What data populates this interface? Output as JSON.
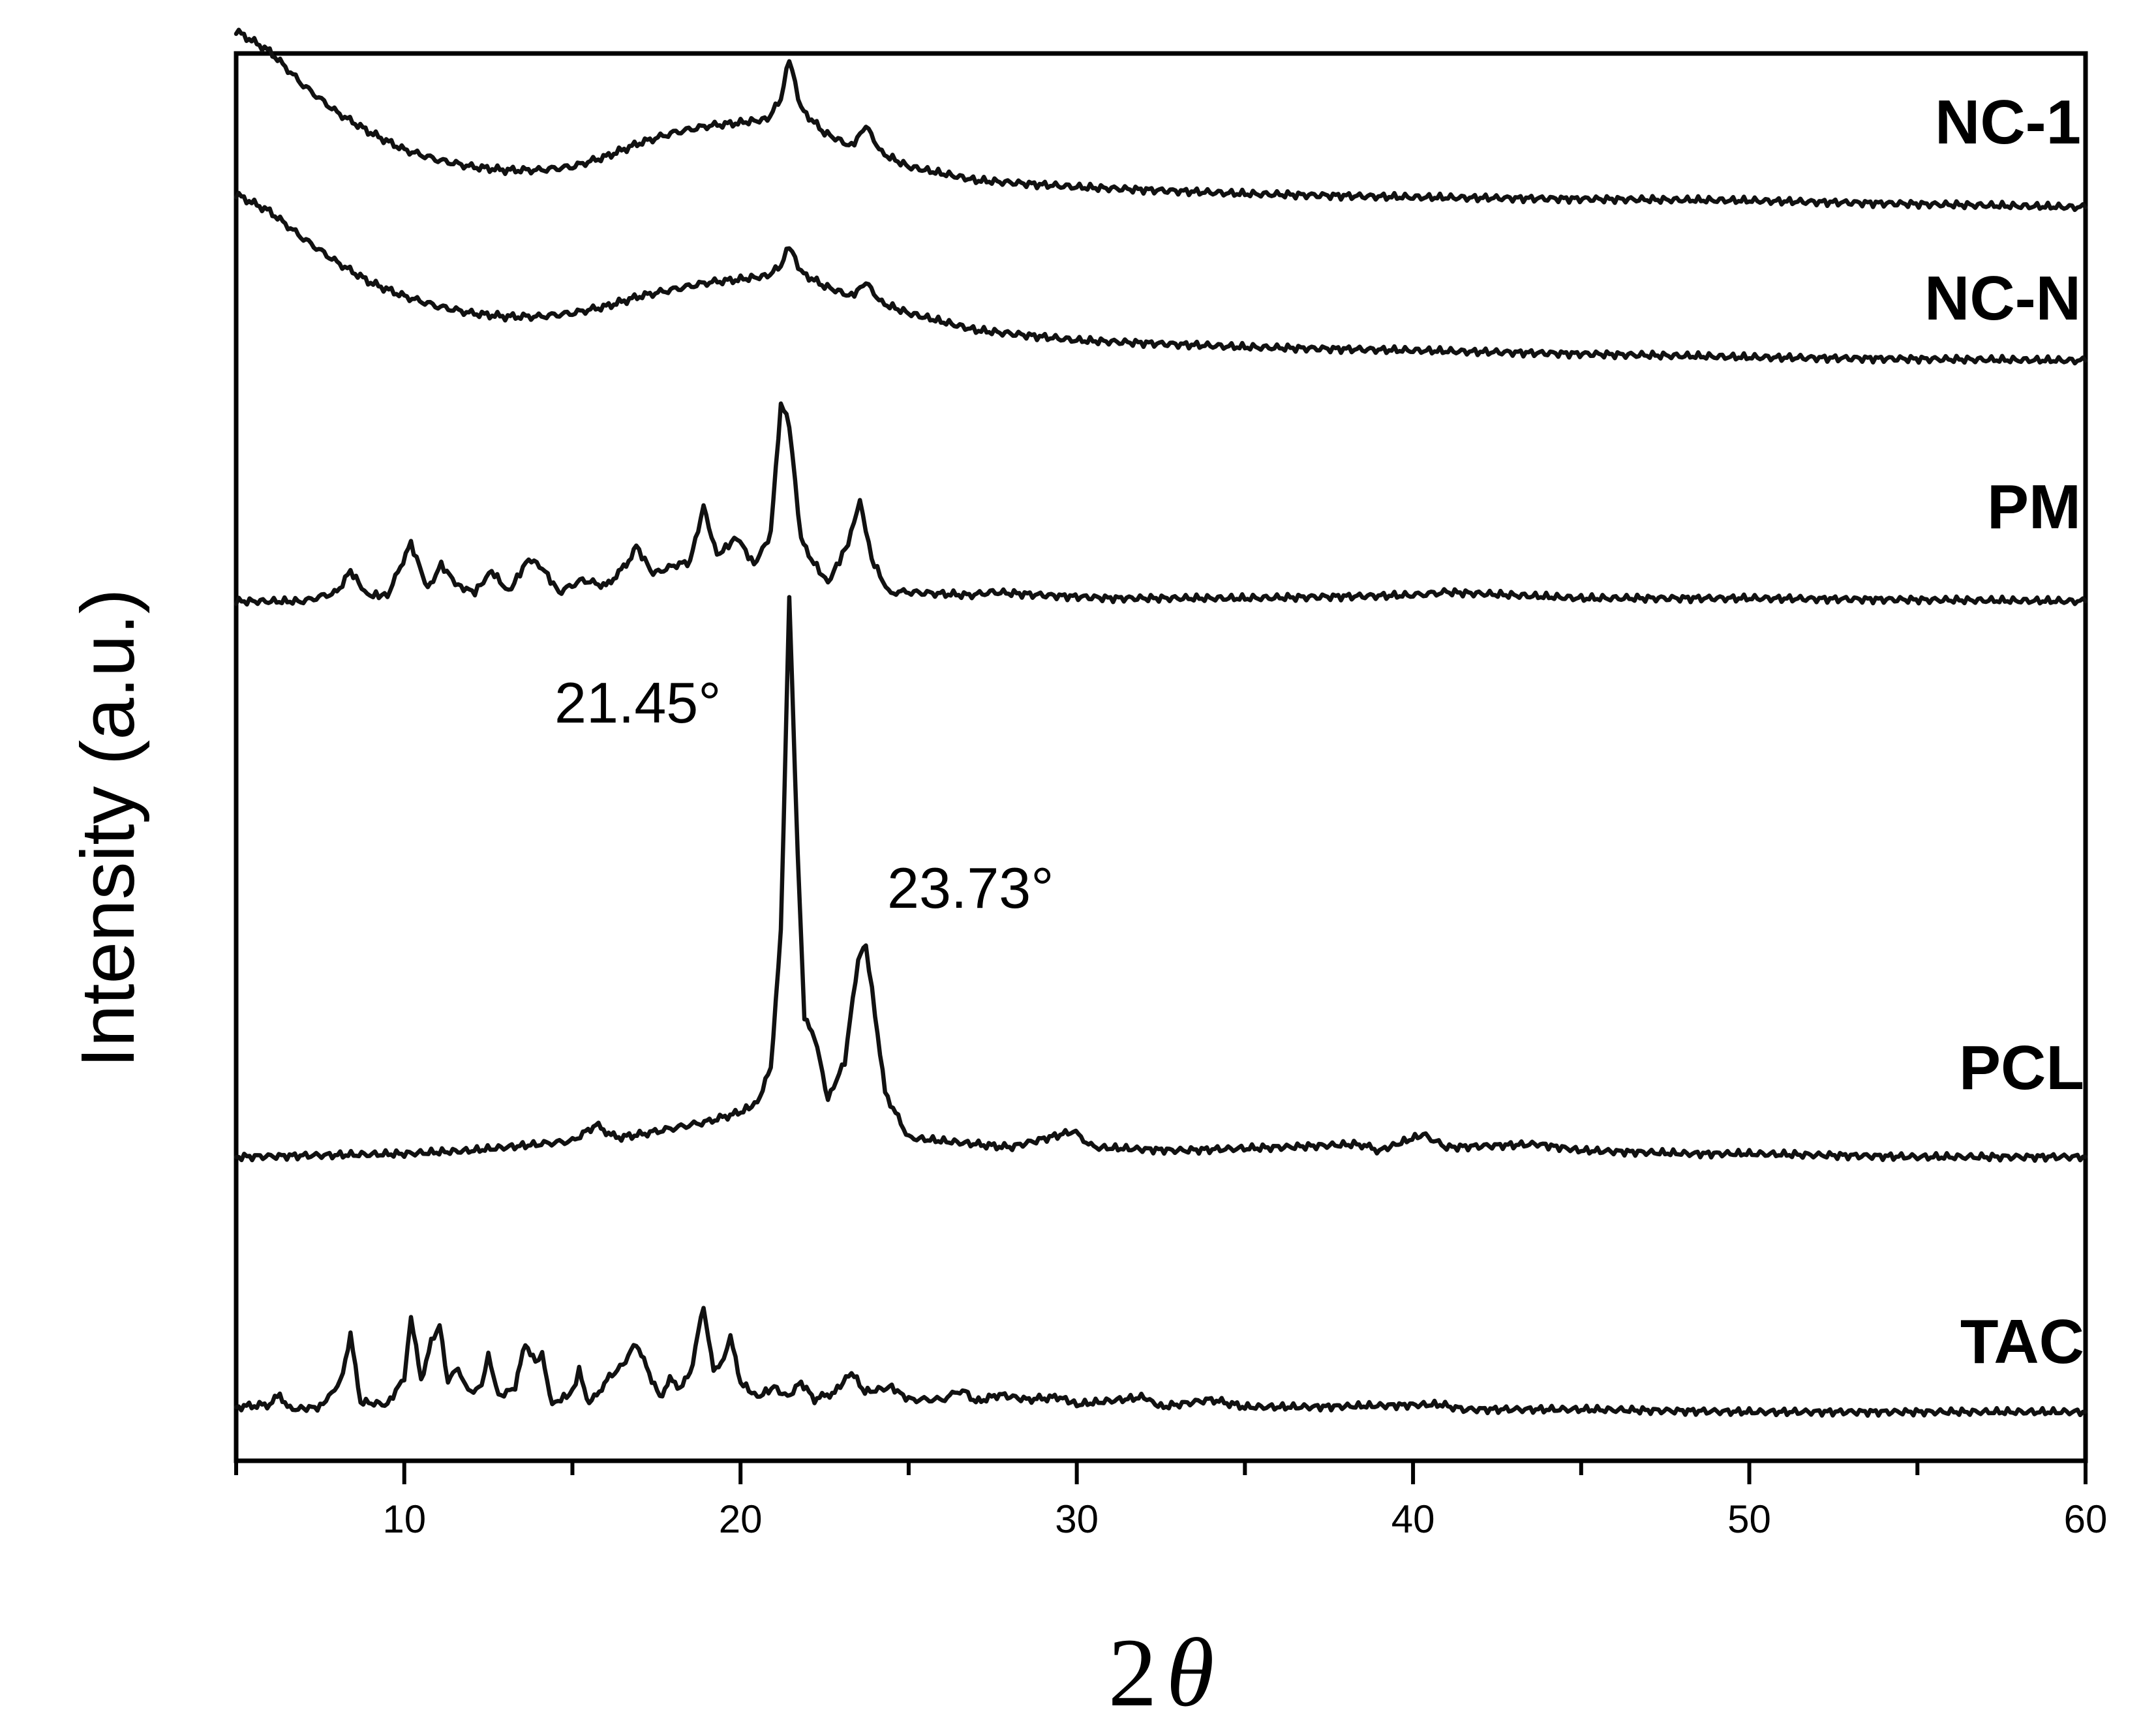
{
  "chart_data": {
    "type": "line",
    "xlabel_prefix": "2",
    "xlabel_symbol": "θ",
    "ylabel": "Intensity (a.u.)",
    "xlim": [
      5,
      60
    ],
    "xticks": [
      10,
      20,
      30,
      40,
      50,
      60
    ],
    "grid": false,
    "annotations": [
      {
        "text": "21.45°",
        "x": 21.45,
        "series": "PCL"
      },
      {
        "text": "23.73°",
        "x": 23.73,
        "series": "PCL"
      }
    ],
    "series": [
      {
        "name": "NC-1",
        "baseline": 0.9,
        "points": [
          [
            5,
            1.42
          ],
          [
            6,
            1.36
          ],
          [
            7,
            1.26
          ],
          [
            8,
            1.18
          ],
          [
            9,
            1.12
          ],
          [
            10,
            1.07
          ],
          [
            11,
            1.04
          ],
          [
            12,
            1.02
          ],
          [
            13,
            1.01
          ],
          [
            14,
            1.01
          ],
          [
            15,
            1.02
          ],
          [
            16,
            1.05
          ],
          [
            17,
            1.09
          ],
          [
            18,
            1.12
          ],
          [
            19,
            1.14
          ],
          [
            20,
            1.15
          ],
          [
            20.8,
            1.16
          ],
          [
            21.2,
            1.22
          ],
          [
            21.45,
            1.34
          ],
          [
            21.8,
            1.19
          ],
          [
            22.5,
            1.12
          ],
          [
            23.3,
            1.08
          ],
          [
            23.73,
            1.14
          ],
          [
            24.2,
            1.06
          ],
          [
            25,
            1.02
          ],
          [
            27,
            0.98
          ],
          [
            30,
            0.96
          ],
          [
            35,
            0.94
          ],
          [
            40,
            0.93
          ],
          [
            50,
            0.92
          ],
          [
            60,
            0.9
          ]
        ]
      },
      {
        "name": "NC-N",
        "baseline": 0.65,
        "points": [
          [
            5,
            1.14
          ],
          [
            6,
            1.09
          ],
          [
            7,
            1.01
          ],
          [
            8,
            0.94
          ],
          [
            9,
            0.88
          ],
          [
            10,
            0.84
          ],
          [
            11,
            0.81
          ],
          [
            12,
            0.79
          ],
          [
            13,
            0.78
          ],
          [
            14,
            0.78
          ],
          [
            15,
            0.79
          ],
          [
            16,
            0.81
          ],
          [
            17,
            0.84
          ],
          [
            18,
            0.86
          ],
          [
            19,
            0.88
          ],
          [
            20,
            0.89
          ],
          [
            20.8,
            0.9
          ],
          [
            21.2,
            0.93
          ],
          [
            21.45,
            0.99
          ],
          [
            21.8,
            0.91
          ],
          [
            22.5,
            0.87
          ],
          [
            23.3,
            0.84
          ],
          [
            23.73,
            0.88
          ],
          [
            24.2,
            0.82
          ],
          [
            25,
            0.79
          ],
          [
            27,
            0.74
          ],
          [
            30,
            0.71
          ],
          [
            35,
            0.69
          ],
          [
            40,
            0.68
          ],
          [
            50,
            0.66
          ],
          [
            60,
            0.65
          ]
        ]
      },
      {
        "name": "PM",
        "baseline": 0.0,
        "points": [
          [
            5,
            0.0
          ],
          [
            7,
            0.0
          ],
          [
            8,
            0.03
          ],
          [
            8.4,
            0.1
          ],
          [
            8.9,
            0.02
          ],
          [
            9.5,
            0.02
          ],
          [
            10.2,
            0.19
          ],
          [
            10.7,
            0.04
          ],
          [
            11.1,
            0.12
          ],
          [
            11.6,
            0.05
          ],
          [
            12.1,
            0.03
          ],
          [
            12.6,
            0.1
          ],
          [
            13.1,
            0.03
          ],
          [
            13.7,
            0.14
          ],
          [
            14.1,
            0.11
          ],
          [
            14.6,
            0.03
          ],
          [
            15.3,
            0.07
          ],
          [
            16,
            0.05
          ],
          [
            16.6,
            0.12
          ],
          [
            16.9,
            0.18
          ],
          [
            17.4,
            0.09
          ],
          [
            18.1,
            0.12
          ],
          [
            18.5,
            0.13
          ],
          [
            18.9,
            0.31
          ],
          [
            19.3,
            0.15
          ],
          [
            19.9,
            0.21
          ],
          [
            20.4,
            0.12
          ],
          [
            20.9,
            0.22
          ],
          [
            21.2,
            0.65
          ],
          [
            21.45,
            0.58
          ],
          [
            21.8,
            0.2
          ],
          [
            22.1,
            0.14
          ],
          [
            22.6,
            0.06
          ],
          [
            23.2,
            0.19
          ],
          [
            23.55,
            0.33
          ],
          [
            23.9,
            0.14
          ],
          [
            24.4,
            0.03
          ],
          [
            25,
            0.03
          ],
          [
            26.8,
            0.02
          ],
          [
            27.5,
            0.03
          ],
          [
            29,
            0.02
          ],
          [
            31,
            0.01
          ],
          [
            35,
            0.01
          ],
          [
            40,
            0.02
          ],
          [
            41,
            0.03
          ],
          [
            45,
            0.01
          ],
          [
            50,
            0.01
          ],
          [
            60,
            0.0
          ]
        ]
      },
      {
        "name": "PCL",
        "baseline": -0.9,
        "points": [
          [
            5,
            -0.9
          ],
          [
            10,
            -0.89
          ],
          [
            12,
            -0.88
          ],
          [
            14,
            -0.86
          ],
          [
            15,
            -0.85
          ],
          [
            15.7,
            -0.8
          ],
          [
            16.3,
            -0.84
          ],
          [
            17,
            -0.83
          ],
          [
            18,
            -0.81
          ],
          [
            19,
            -0.79
          ],
          [
            20,
            -0.76
          ],
          [
            20.5,
            -0.73
          ],
          [
            20.9,
            -0.62
          ],
          [
            21.2,
            -0.2
          ],
          [
            21.45,
            0.85
          ],
          [
            21.7,
            0.05
          ],
          [
            21.9,
            -0.47
          ],
          [
            22.2,
            -0.52
          ],
          [
            22.6,
            -0.72
          ],
          [
            23.1,
            -0.6
          ],
          [
            23.5,
            -0.28
          ],
          [
            23.73,
            -0.24
          ],
          [
            24,
            -0.45
          ],
          [
            24.3,
            -0.7
          ],
          [
            25,
            -0.84
          ],
          [
            27,
            -0.86
          ],
          [
            28,
            -0.87
          ],
          [
            29.9,
            -0.82
          ],
          [
            30.5,
            -0.87
          ],
          [
            33,
            -0.88
          ],
          [
            36,
            -0.87
          ],
          [
            38.4,
            -0.86
          ],
          [
            39,
            -0.88
          ],
          [
            40.3,
            -0.83
          ],
          [
            41,
            -0.87
          ],
          [
            43.7,
            -0.86
          ],
          [
            45,
            -0.88
          ],
          [
            48.3,
            -0.89
          ],
          [
            50,
            -0.89
          ],
          [
            55,
            -0.9
          ],
          [
            60,
            -0.9
          ]
        ]
      },
      {
        "name": "TAC",
        "baseline": -1.3,
        "points": [
          [
            5,
            -1.28
          ],
          [
            6,
            -1.27
          ],
          [
            6.3,
            -1.23
          ],
          [
            6.6,
            -1.29
          ],
          [
            7.5,
            -1.28
          ],
          [
            8.1,
            -1.18
          ],
          [
            8.4,
            -0.99
          ],
          [
            8.7,
            -1.26
          ],
          [
            9.5,
            -1.27
          ],
          [
            10,
            -1.16
          ],
          [
            10.2,
            -0.92
          ],
          [
            10.5,
            -1.17
          ],
          [
            10.8,
            -1.02
          ],
          [
            11.05,
            -0.95
          ],
          [
            11.3,
            -1.18
          ],
          [
            11.6,
            -1.12
          ],
          [
            11.9,
            -1.22
          ],
          [
            12.3,
            -1.2
          ],
          [
            12.5,
            -1.06
          ],
          [
            12.8,
            -1.24
          ],
          [
            13.3,
            -1.2
          ],
          [
            13.6,
            -1.02
          ],
          [
            13.9,
            -1.1
          ],
          [
            14.1,
            -1.07
          ],
          [
            14.4,
            -1.27
          ],
          [
            15,
            -1.22
          ],
          [
            15.2,
            -1.13
          ],
          [
            15.5,
            -1.27
          ],
          [
            16.1,
            -1.16
          ],
          [
            16.5,
            -1.11
          ],
          [
            16.9,
            -1.02
          ],
          [
            17.2,
            -1.12
          ],
          [
            17.6,
            -1.24
          ],
          [
            17.9,
            -1.17
          ],
          [
            18.2,
            -1.2
          ],
          [
            18.5,
            -1.15
          ],
          [
            18.9,
            -0.87
          ],
          [
            19.2,
            -1.14
          ],
          [
            19.5,
            -1.08
          ],
          [
            19.7,
            -1.0
          ],
          [
            20,
            -1.18
          ],
          [
            20.5,
            -1.24
          ],
          [
            21,
            -1.2
          ],
          [
            21.4,
            -1.24
          ],
          [
            21.8,
            -1.18
          ],
          [
            22.2,
            -1.25
          ],
          [
            22.8,
            -1.22
          ],
          [
            23.3,
            -1.14
          ],
          [
            23.7,
            -1.22
          ],
          [
            24.5,
            -1.2
          ],
          [
            25,
            -1.25
          ],
          [
            26,
            -1.25
          ],
          [
            26.6,
            -1.21
          ],
          [
            27,
            -1.26
          ],
          [
            27.7,
            -1.23
          ],
          [
            28.5,
            -1.25
          ],
          [
            29.5,
            -1.24
          ],
          [
            30,
            -1.27
          ],
          [
            32,
            -1.24
          ],
          [
            32.5,
            -1.28
          ],
          [
            34,
            -1.25
          ],
          [
            35,
            -1.28
          ],
          [
            37,
            -1.28
          ],
          [
            40.8,
            -1.27
          ],
          [
            41.5,
            -1.29
          ],
          [
            45,
            -1.29
          ],
          [
            50,
            -1.3
          ],
          [
            60,
            -1.3
          ]
        ]
      }
    ]
  }
}
